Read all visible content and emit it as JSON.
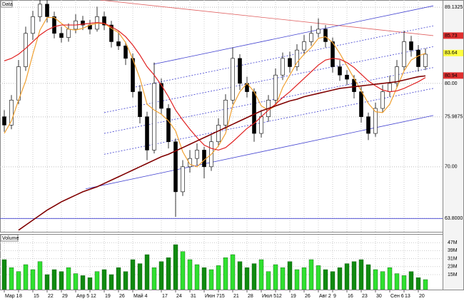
{
  "chart_data": {
    "type": "candlestick",
    "title": "Data",
    "volume_title": "Volume",
    "categories": [
      "Мар 1",
      null,
      "8",
      null,
      "15",
      null,
      "22",
      null,
      "29",
      null,
      "Апр 5",
      null,
      "12",
      null,
      "19",
      null,
      "26",
      null,
      "Май 4",
      null,
      null,
      null,
      "17",
      null,
      "24",
      null,
      "31",
      null,
      "Июн 7",
      null,
      "15",
      null,
      "21",
      null,
      "28",
      null,
      "Июл 5",
      null,
      "12",
      null,
      "19",
      null,
      "26",
      null,
      "Авг 2",
      null,
      "9",
      null,
      "16",
      null,
      "23",
      null,
      "30",
      null,
      "Сен 6",
      null,
      "13",
      null,
      "20",
      null
    ],
    "candles": [
      [
        76,
        76.8,
        74.2,
        75
      ],
      [
        75,
        78.6,
        74.5,
        78
      ],
      [
        78,
        82.8,
        77.5,
        82
      ],
      [
        82,
        86.8,
        81.5,
        86
      ],
      [
        86,
        88.7,
        85.2,
        88
      ],
      [
        88,
        90.5,
        87.4,
        89.5
      ],
      [
        89.5,
        90.2,
        87.3,
        88
      ],
      [
        88,
        88.6,
        85.4,
        86
      ],
      [
        86,
        86.8,
        84.9,
        85.5
      ],
      [
        85.5,
        87.2,
        85,
        86.5
      ],
      [
        86.5,
        88.3,
        86,
        87.5
      ],
      [
        87.5,
        88.1,
        86.4,
        87
      ],
      [
        87,
        87.6,
        85.9,
        86.5
      ],
      [
        86.5,
        89.2,
        86.2,
        88
      ],
      [
        88,
        88.6,
        86.4,
        87
      ],
      [
        87,
        87.5,
        84.3,
        85
      ],
      [
        85,
        86.2,
        84,
        84.5
      ],
      [
        84.5,
        85,
        82.2,
        83
      ],
      [
        83,
        83.6,
        78.3,
        79
      ],
      [
        79,
        79.8,
        75.2,
        76
      ],
      [
        76,
        76.6,
        70.8,
        72
      ],
      [
        72,
        82.5,
        71.6,
        80
      ],
      [
        80,
        80.6,
        76.3,
        77
      ],
      [
        77,
        77.5,
        72.2,
        73
      ],
      [
        73,
        73.4,
        64,
        67
      ],
      [
        67,
        70.8,
        66.5,
        70
      ],
      [
        70,
        72,
        69.3,
        71
      ],
      [
        71,
        72.8,
        70.2,
        72
      ],
      [
        72,
        72.4,
        68.6,
        70
      ],
      [
        70,
        73.8,
        69.5,
        73
      ],
      [
        73,
        75.8,
        72.4,
        75
      ],
      [
        75,
        78.7,
        74.5,
        78
      ],
      [
        78,
        84.3,
        77.5,
        83
      ],
      [
        83,
        83.5,
        79.2,
        80
      ],
      [
        80,
        80.8,
        78.3,
        79
      ],
      [
        79,
        79.4,
        73,
        74
      ],
      [
        74,
        76.8,
        73.5,
        76
      ],
      [
        76,
        78.6,
        75.4,
        78
      ],
      [
        78,
        81.8,
        77.5,
        81
      ],
      [
        81,
        83.7,
        80.4,
        83
      ],
      [
        83,
        83.8,
        81.3,
        82
      ],
      [
        82,
        84.7,
        81.5,
        84
      ],
      [
        84,
        85.8,
        83.4,
        85
      ],
      [
        85,
        86.9,
        84.5,
        86
      ],
      [
        86,
        87.8,
        85.5,
        86.5
      ],
      [
        86.5,
        87,
        84.3,
        85
      ],
      [
        85,
        85.5,
        81.3,
        82
      ],
      [
        82,
        82.8,
        80.3,
        81
      ],
      [
        81,
        81.6,
        79.8,
        80.5
      ],
      [
        80.5,
        81,
        78.2,
        79
      ],
      [
        79,
        79.6,
        75.3,
        76
      ],
      [
        76,
        76.5,
        73.2,
        74
      ],
      [
        74,
        77.7,
        73.6,
        77
      ],
      [
        77,
        79.8,
        76.5,
        79
      ],
      [
        79,
        80.9,
        78.4,
        80
      ],
      [
        80,
        82.8,
        79.5,
        82
      ],
      [
        82,
        86.3,
        81.5,
        85
      ],
      [
        85,
        85.7,
        83.2,
        84
      ],
      [
        84,
        84.6,
        81.4,
        82
      ],
      [
        82,
        84.2,
        81.6,
        83.5
      ]
    ],
    "up_color": "#ffffff",
    "down_color": "#000000",
    "series": [
      {
        "color": "#f0a030",
        "values": [
          74,
          75.5,
          78,
          80.3,
          83.5,
          86.4,
          87.9,
          87.9,
          87.2,
          86.5,
          86.4,
          86.6,
          87,
          87.2,
          87.2,
          86.6,
          86.1,
          84.9,
          82.9,
          80.6,
          77.5,
          76.8,
          76.3,
          75.5,
          74.3,
          71.8,
          70.3,
          70,
          70.8,
          71.5,
          72.5,
          74,
          77.3,
          79,
          80,
          79,
          77.3,
          76.8,
          77.3,
          79.5,
          81,
          82.5,
          83.5,
          84.3,
          85.4,
          85.6,
          84.9,
          83.6,
          82.1,
          80.6,
          79.1,
          77.6,
          76.6,
          76.5,
          77.5,
          79.5,
          81.5,
          82.8,
          83.3,
          83.6
        ]
      },
      {
        "color": "#e02020",
        "values": [
          82.7,
          83,
          83.5,
          84.2,
          85,
          85.8,
          86.4,
          86.8,
          87,
          87,
          87,
          87.1,
          87.2,
          87.3,
          87.2,
          86.8,
          86.3,
          85.6,
          84.6,
          83.4,
          82,
          81,
          79.8,
          78.4,
          76.8,
          75.6,
          74.5,
          73.5,
          72.6,
          72.2,
          72,
          72.3,
          73,
          73.8,
          74.6,
          75.2,
          76,
          76.8,
          77.5,
          78.3,
          79,
          79.8,
          80.6,
          81.4,
          82.2,
          82.8,
          83,
          82.9,
          82.5,
          81.9,
          81.1,
          80.3,
          79.7,
          79.2,
          79,
          79.1,
          79.4,
          79.8,
          80.2,
          80.7
        ]
      },
      {
        "color": "#800000",
        "values": [
          null,
          null,
          62.4,
          63,
          63.6,
          64.2,
          64.8,
          65.3,
          65.8,
          66.2,
          66.6,
          67,
          67.3,
          67.6,
          68,
          68.4,
          68.8,
          69.2,
          69.6,
          70,
          70.4,
          70.8,
          71.2,
          71.5,
          71.9,
          72.3,
          72.7,
          73.1,
          73.5,
          73.9,
          74.3,
          74.7,
          75.1,
          75.5,
          75.9,
          76.3,
          76.7,
          77,
          77.3,
          77.6,
          77.9,
          78.1,
          78.4,
          78.6,
          78.8,
          79,
          79.2,
          79.4,
          79.5,
          79.6,
          79.7,
          79.8,
          79.9,
          80,
          80.1,
          80.2,
          80.4,
          80.6,
          80.8,
          80.9
        ]
      }
    ],
    "trendlines": [
      {
        "color": "#e06060",
        "dashed": false,
        "start": [
          13.4,
          90
        ],
        "end": [
          60.1,
          85.73
        ]
      },
      {
        "color": "#4040d0",
        "dashed": false,
        "start": [
          20.9,
          82.3
        ],
        "end": [
          60.1,
          89.3
        ]
      },
      {
        "color": "#4040d0",
        "dashed": false,
        "start": [
          11.4,
          67.35
        ],
        "end": [
          60.1,
          76.15
        ]
      },
      {
        "color": "#4040d0",
        "dashed": true,
        "start": [
          14,
          71.5
        ],
        "end": [
          60.1,
          79.4
        ]
      },
      {
        "color": "#4040d0",
        "dashed": true,
        "start": [
          14,
          74
        ],
        "end": [
          60.1,
          81.9
        ]
      },
      {
        "color": "#4040d0",
        "dashed": true,
        "start": [
          14,
          76.5
        ],
        "end": [
          60.1,
          84.4
        ]
      },
      {
        "color": "#4040d0",
        "dashed": true,
        "start": [
          18,
          79.5
        ],
        "end": [
          60.1,
          86.9
        ]
      },
      {
        "color": "#4040d0",
        "dashed": false,
        "start": [
          -1,
          63.8
        ],
        "end": [
          62,
          63.8
        ]
      }
    ],
    "ylim": [
      62.2,
      90
    ],
    "yticks": [
      89.1325,
      {
        "value": 80,
        "label": "80.00"
      },
      75.9875,
      {
        "value": 70,
        "label": "70.00"
      },
      {
        "value": 63.8,
        "label": "63.8000"
      }
    ],
    "price_labels": [
      {
        "value": 85.73,
        "color": "#e03030"
      },
      {
        "value": 83.64,
        "color": "#ffff40"
      },
      {
        "value": 80.94,
        "color": "#e03030"
      }
    ],
    "volume": [
      30,
      22,
      18,
      25,
      20,
      28,
      15,
      20,
      18,
      22,
      16,
      14,
      12,
      18,
      20,
      15,
      22,
      18,
      30,
      26,
      35,
      22,
      28,
      32,
      45,
      38,
      30,
      25,
      22,
      20,
      24,
      32,
      35,
      28,
      22,
      26,
      30,
      18,
      25,
      22,
      28,
      20,
      22,
      30,
      24,
      20,
      18,
      22,
      26,
      28,
      30,
      25,
      20,
      18,
      22,
      16,
      14,
      18,
      12,
      10
    ],
    "volume_up_color": "#30e030",
    "volume_down_color": "#108a10",
    "volume_ylim": [
      0,
      55
    ],
    "volume_ticks": [
      {
        "value": 47,
        "label": "47M"
      },
      {
        "value": 39,
        "label": "39M"
      },
      {
        "value": 31,
        "label": "31M"
      },
      {
        "value": 23,
        "label": "23M"
      },
      {
        "value": 15,
        "label": "15M"
      }
    ],
    "grid": true
  }
}
